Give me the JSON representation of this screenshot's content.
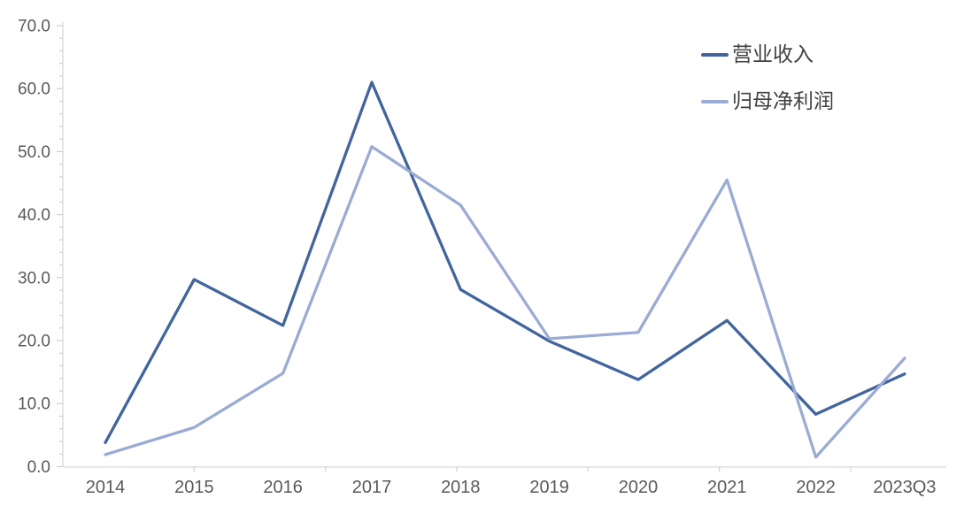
{
  "chart_data": {
    "type": "line",
    "categories": [
      "2014",
      "2015",
      "2016",
      "2017",
      "2018",
      "2019",
      "2020",
      "2021",
      "2022",
      "2023Q3"
    ],
    "series": [
      {
        "name": "营业收入",
        "color": "#41659C",
        "values": [
          3.8,
          29.7,
          22.4,
          61.0,
          28.1,
          19.9,
          13.8,
          23.2,
          8.3,
          14.7
        ]
      },
      {
        "name": "归母净利润",
        "color": "#9AABD4",
        "values": [
          1.9,
          6.2,
          14.8,
          50.8,
          41.5,
          20.3,
          21.3,
          45.5,
          1.5,
          17.2
        ]
      }
    ],
    "title": "",
    "xlabel": "",
    "ylabel": "",
    "ylim": [
      0,
      70
    ],
    "y_major_step": 10,
    "y_minor_step": 2,
    "grid": false,
    "legend_position": "top-right"
  },
  "axes": {
    "y_tick_labels": [
      "70.0",
      "60.0",
      "50.0",
      "40.0",
      "30.0",
      "20.0",
      "10.0",
      "0.0"
    ],
    "axis_line_color": "#D9D9D9",
    "tick_color": "#CFCFCF",
    "tick_label_color": "#595959"
  }
}
